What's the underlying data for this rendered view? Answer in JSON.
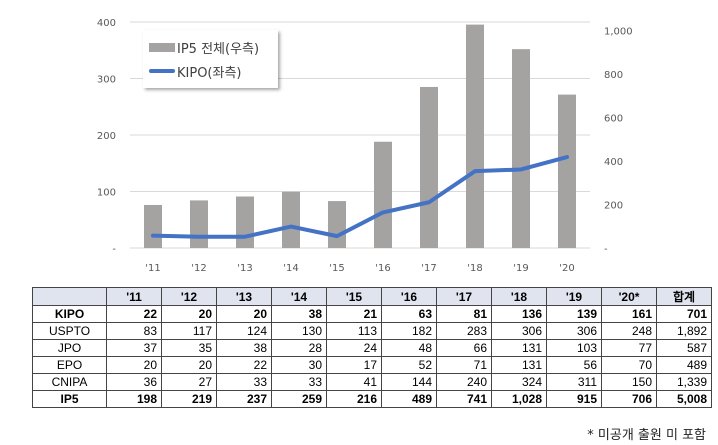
{
  "chart_data": {
    "type": "bar+line",
    "categories": [
      "'11",
      "'12",
      "'13",
      "'14",
      "'15",
      "'16",
      "'17",
      "'18",
      "'19",
      "'20"
    ],
    "series": [
      {
        "name": "IP5 전체(우측)",
        "type": "bar",
        "axis": "right",
        "color": "#a5a3a2",
        "values": [
          198,
          219,
          237,
          259,
          216,
          489,
          741,
          1028,
          915,
          706
        ]
      },
      {
        "name": "KIPO(좌측)",
        "type": "line",
        "axis": "left",
        "color": "#4472c4",
        "values": [
          22,
          20,
          20,
          38,
          21,
          63,
          81,
          136,
          139,
          161
        ]
      }
    ],
    "left_axis": {
      "ylim": [
        0,
        400
      ],
      "ticks": [
        "-",
        "100",
        "200",
        "300",
        "400"
      ]
    },
    "right_axis": {
      "ylim": [
        0,
        1040
      ],
      "ticks": [
        "-",
        "200",
        "400",
        "600",
        "800",
        "1,000"
      ]
    },
    "grid": true,
    "legend": "top-left"
  },
  "table": {
    "headers": [
      "'11",
      "'12",
      "'13",
      "'14",
      "'15",
      "'16",
      "'17",
      "'18",
      "'19",
      "'20*",
      "합계"
    ],
    "rows": [
      {
        "label": "KIPO",
        "bold": true,
        "values": [
          "22",
          "20",
          "20",
          "38",
          "21",
          "63",
          "81",
          "136",
          "139",
          "161",
          "701"
        ]
      },
      {
        "label": "USPTO",
        "values": [
          "83",
          "117",
          "124",
          "130",
          "113",
          "182",
          "283",
          "306",
          "306",
          "248",
          "1,892"
        ]
      },
      {
        "label": "JPO",
        "values": [
          "37",
          "35",
          "38",
          "28",
          "24",
          "48",
          "66",
          "131",
          "103",
          "77",
          "587"
        ]
      },
      {
        "label": "EPO",
        "values": [
          "20",
          "20",
          "22",
          "30",
          "17",
          "52",
          "71",
          "131",
          "56",
          "70",
          "489"
        ]
      },
      {
        "label": "CNIPA",
        "values": [
          "36",
          "27",
          "33",
          "33",
          "41",
          "144",
          "240",
          "324",
          "311",
          "150",
          "1,339"
        ]
      },
      {
        "label": "IP5",
        "bold": true,
        "values": [
          "198",
          "219",
          "237",
          "259",
          "216",
          "489",
          "741",
          "1,028",
          "915",
          "706",
          "5,008"
        ]
      }
    ]
  },
  "footnote": "* 미공개 출원 미 포함"
}
